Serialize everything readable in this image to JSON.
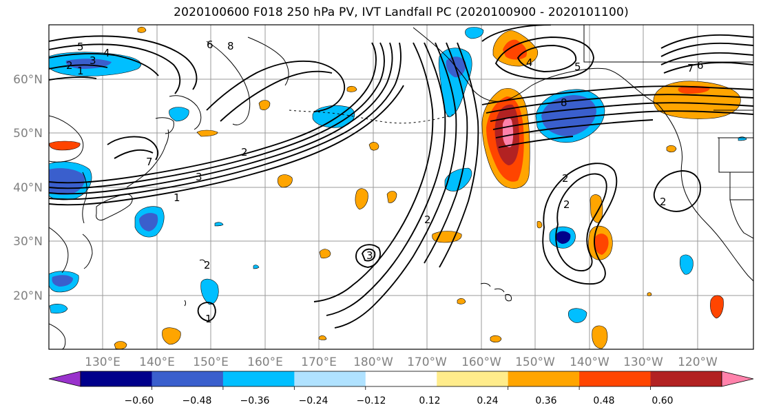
{
  "title": "2020100600 F018 250 hPa PV, IVT Landfall PC (2020100900 - 2020101100)",
  "map": {
    "lat_labels": [
      "60°N",
      "50°N",
      "40°N",
      "30°N",
      "20°N"
    ],
    "lon_labels": [
      "130°E",
      "140°E",
      "150°E",
      "160°E",
      "170°E",
      "180°W",
      "170°W",
      "160°W",
      "150°W",
      "140°W",
      "130°W",
      "120°W"
    ],
    "contour_labels": [
      "5",
      "4",
      "3",
      "2",
      "1",
      "6",
      "8",
      "7",
      "3",
      "2",
      "1",
      "2",
      "3",
      "1",
      "2",
      "4",
      "5",
      "8",
      "6",
      "7",
      "2",
      "2",
      "2"
    ]
  },
  "colorbar": {
    "colors": [
      "#9932CC",
      "#00008B",
      "#3A5FCD",
      "#00BFFF",
      "#B0E2FF",
      "#FFFFFF",
      "#FFEC8B",
      "#FFA500",
      "#FF4500",
      "#B22222",
      "#FF82AB"
    ],
    "tick_labels": [
      "−0.60",
      "−0.48",
      "−0.36",
      "−0.24",
      "−0.12",
      "0.12",
      "0.24",
      "0.36",
      "0.48",
      "0.60"
    ]
  }
}
